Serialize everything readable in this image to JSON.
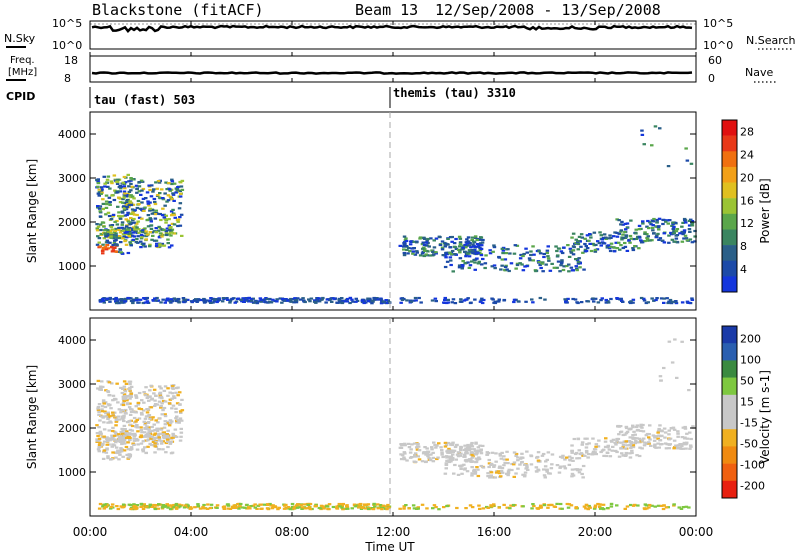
{
  "header": {
    "station": "Blackstone (fitACF)",
    "beam": "Beam 13",
    "dates": "12/Sep/2008 - 13/Sep/2008"
  },
  "noise_panel": {
    "left_label": "N.Sky",
    "right_label": "N.Search",
    "left_ticks": [
      "10^5",
      "10^0"
    ],
    "right_ticks": [
      "10^5",
      "10^0"
    ]
  },
  "freq_panel": {
    "left_label_line1": "Freq.",
    "left_label_line2": "[MHz]",
    "right_label": "Nave",
    "left_ticks": [
      "18",
      "8"
    ],
    "right_ticks": [
      "60",
      "0"
    ]
  },
  "cpid": {
    "label": "CPID",
    "segments": [
      "tau (fast) 503",
      "themis (tau) 3310"
    ]
  },
  "colors": {
    "power": [
      "#1436dc",
      "#1c4aa8",
      "#2a5f88",
      "#3a8560",
      "#5aa64a",
      "#9bc434",
      "#e0c020",
      "#f2a018",
      "#f07010",
      "#e83818",
      "#e01010"
    ],
    "velocity": [
      "#1a3aa8",
      "#2a5fb0",
      "#3a8a40",
      "#7ec840",
      "#c8c8c8",
      "#c8c8c8",
      "#f0b020",
      "#f08a10",
      "#f06010",
      "#e82010"
    ]
  },
  "chart_data": [
    {
      "type": "heatmap",
      "name": "Power",
      "ylabel": "Slant Range [km]",
      "y_ticks": [
        "1000",
        "2000",
        "3000",
        "4000"
      ],
      "colorbar_label": "Power [dB]",
      "colorbar_ticks": [
        "4",
        "8",
        "12",
        "16",
        "20",
        "24",
        "28"
      ],
      "ylim": [
        0,
        4500
      ],
      "xlim_hours": [
        0,
        24
      ]
    },
    {
      "type": "heatmap",
      "name": "Velocity",
      "ylabel": "Slant Range [km]",
      "y_ticks": [
        "1000",
        "2000",
        "3000",
        "4000"
      ],
      "colorbar_label": "Velocity [m s-1]",
      "colorbar_ticks": [
        "200",
        "100",
        "50",
        "15",
        "-15",
        "-50",
        "-100",
        "-200"
      ],
      "ylim": [
        0,
        4500
      ],
      "xlim_hours": [
        0,
        24
      ]
    }
  ],
  "x_axis": {
    "label": "Time UT",
    "ticks": [
      "00:00",
      "04:00",
      "08:00",
      "12:00",
      "16:00",
      "20:00",
      "00:00"
    ]
  }
}
